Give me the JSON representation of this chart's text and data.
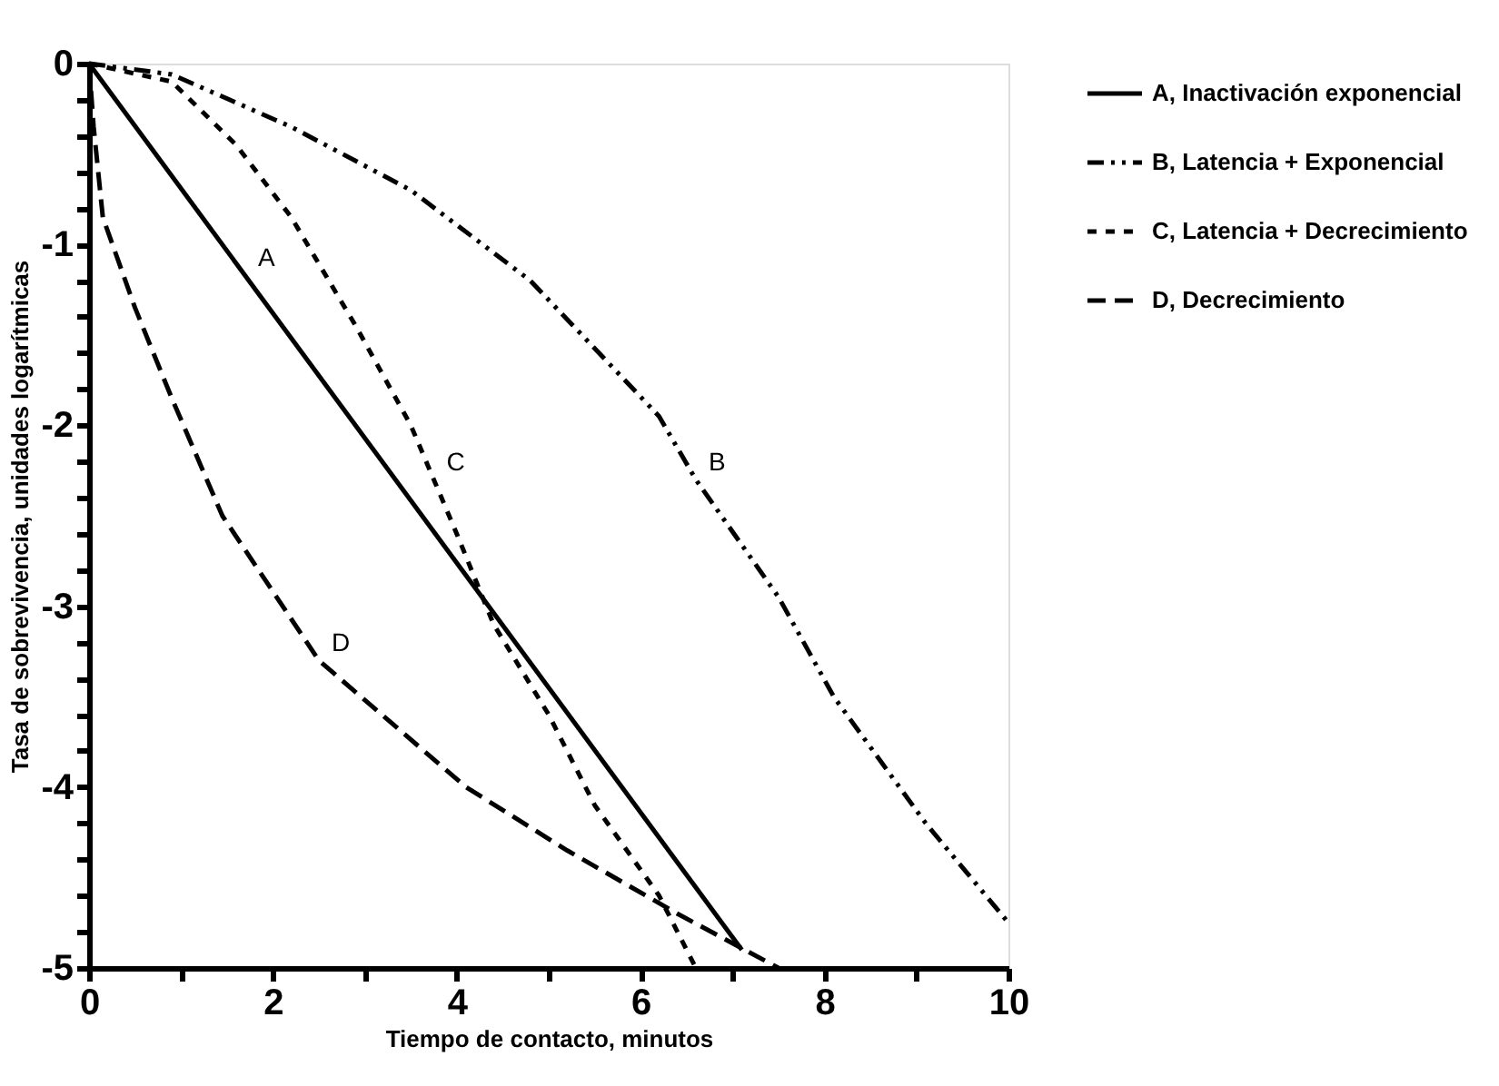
{
  "chart_data": {
    "type": "line",
    "xlabel": "Tiempo de contacto, minutos",
    "ylabel": "Tasa de sobrevivencia, unidades logarítmicas",
    "xlim": [
      0,
      10
    ],
    "ylim": [
      -5,
      0
    ],
    "xticks": [
      0,
      {
        "value": 1,
        "label": null
      },
      2,
      {
        "value": 3,
        "label": null
      },
      4,
      {
        "value": 5,
        "label": null
      },
      6,
      {
        "value": 7,
        "label": null
      },
      8,
      {
        "value": 9,
        "label": null
      },
      10
    ],
    "yticks": [
      0,
      {
        "value": -0.2,
        "label": null
      },
      {
        "value": -0.4,
        "label": null
      },
      {
        "value": -0.6,
        "label": null
      },
      {
        "value": -0.8,
        "label": null
      },
      -1,
      {
        "value": -1.2,
        "label": null
      },
      {
        "value": -1.4,
        "label": null
      },
      {
        "value": -1.6,
        "label": null
      },
      {
        "value": -1.8,
        "label": null
      },
      -2,
      {
        "value": -2.2,
        "label": null
      },
      {
        "value": -2.4,
        "label": null
      },
      {
        "value": -2.6,
        "label": null
      },
      {
        "value": -2.8,
        "label": null
      },
      -3,
      {
        "value": -3.2,
        "label": null
      },
      {
        "value": -3.4,
        "label": null
      },
      {
        "value": -3.6,
        "label": null
      },
      {
        "value": -3.8,
        "label": null
      },
      -4,
      {
        "value": -4.2,
        "label": null
      },
      {
        "value": -4.4,
        "label": null
      },
      {
        "value": -4.6,
        "label": null
      },
      {
        "value": -4.8,
        "label": null
      },
      -5
    ],
    "grid": false,
    "legend": "top right",
    "marker": "none",
    "series": [
      {
        "name": "A, Inactivación exponencial",
        "color": "#000000",
        "line_style": "solid",
        "x": [
          0,
          7.1
        ],
        "values": [
          0,
          -4.9
        ]
      },
      {
        "name": "B, Latencia + Exponencial",
        "color": "#000000",
        "line_style": "dashdot",
        "x": [
          0,
          0.9,
          2.2,
          3.5,
          4.8,
          6.2,
          6.6,
          7.5,
          8.1,
          9.1,
          10
        ],
        "values": [
          0,
          -0.06,
          -0.35,
          -0.7,
          -1.2,
          -1.95,
          -2.3,
          -2.95,
          -3.5,
          -4.2,
          -4.75
        ]
      },
      {
        "name": "C, Latencia + Decrecimiento",
        "color": "#000000",
        "line_style": "dotted",
        "x": [
          0,
          0.9,
          1.6,
          2.2,
          2.9,
          3.5,
          4.0,
          4.4,
          5.0,
          5.5,
          6.2,
          6.6
        ],
        "values": [
          0,
          -0.1,
          -0.45,
          -0.85,
          -1.45,
          -2.0,
          -2.6,
          -3.1,
          -3.6,
          -4.1,
          -4.6,
          -5.0
        ]
      },
      {
        "name": "D, Decrecimiento",
        "color": "#000000",
        "line_style": "dashed",
        "x": [
          0,
          0.05,
          0.15,
          0.5,
          0.9,
          1.45,
          2.5,
          4.1,
          5.2,
          6.4,
          7.5
        ],
        "values": [
          0,
          -0.35,
          -0.85,
          -1.35,
          -1.85,
          -2.5,
          -3.3,
          -4.0,
          -4.35,
          -4.7,
          -5.0
        ]
      }
    ],
    "annotations": [
      {
        "text": "A",
        "x": 1.7,
        "y": -1.17
      },
      {
        "text": "B",
        "x": 6.6,
        "y": -2.3
      },
      {
        "text": "C",
        "x": 3.75,
        "y": -2.3
      },
      {
        "text": "D",
        "x": 2.5,
        "y": -3.3
      }
    ]
  }
}
